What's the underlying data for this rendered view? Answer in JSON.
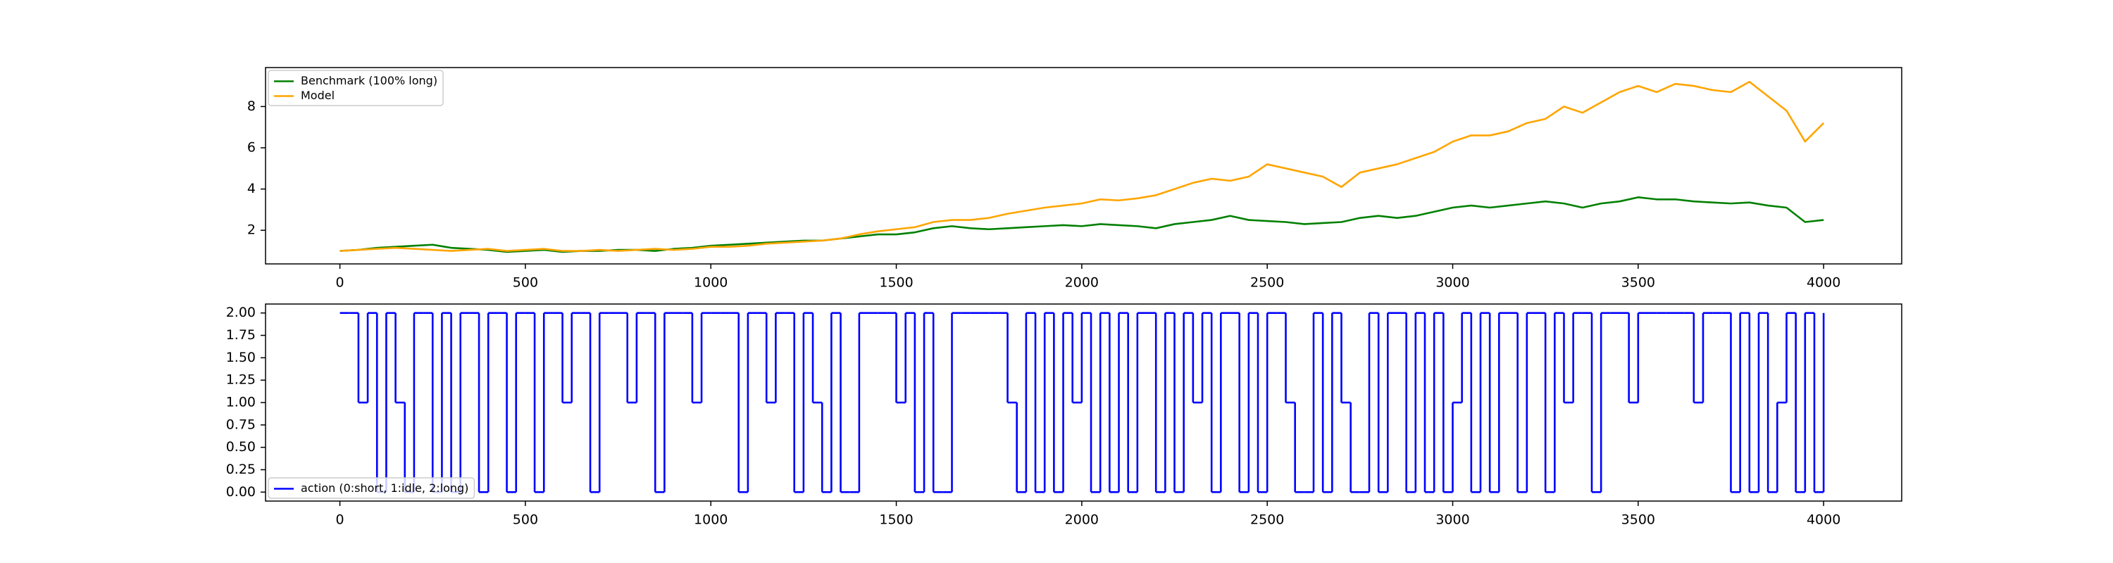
{
  "chart_data": [
    {
      "type": "line",
      "x": [
        0,
        50,
        100,
        150,
        200,
        250,
        300,
        350,
        400,
        450,
        500,
        550,
        600,
        650,
        700,
        750,
        800,
        850,
        900,
        950,
        1000,
        1050,
        1100,
        1150,
        1200,
        1250,
        1300,
        1350,
        1400,
        1450,
        1500,
        1550,
        1600,
        1650,
        1700,
        1750,
        1800,
        1850,
        1900,
        1950,
        2000,
        2050,
        2100,
        2150,
        2200,
        2250,
        2300,
        2350,
        2400,
        2450,
        2500,
        2550,
        2600,
        2650,
        2700,
        2750,
        2800,
        2850,
        2900,
        2950,
        3000,
        3050,
        3100,
        3150,
        3200,
        3250,
        3300,
        3350,
        3400,
        3450,
        3500,
        3550,
        3600,
        3650,
        3700,
        3750,
        3800,
        3850,
        3900,
        3950,
        4000
      ],
      "series": [
        {
          "name": "Benchmark (100% long)",
          "color": "green",
          "values": [
            1.0,
            1.05,
            1.15,
            1.2,
            1.25,
            1.3,
            1.15,
            1.1,
            1.05,
            0.95,
            1.0,
            1.05,
            0.95,
            1.0,
            1.0,
            1.05,
            1.05,
            1.0,
            1.1,
            1.15,
            1.25,
            1.3,
            1.35,
            1.4,
            1.45,
            1.5,
            1.5,
            1.6,
            1.7,
            1.8,
            1.8,
            1.9,
            2.1,
            2.2,
            2.1,
            2.05,
            2.1,
            2.15,
            2.2,
            2.25,
            2.2,
            2.3,
            2.25,
            2.2,
            2.1,
            2.3,
            2.4,
            2.5,
            2.7,
            2.5,
            2.45,
            2.4,
            2.3,
            2.35,
            2.4,
            2.6,
            2.7,
            2.6,
            2.7,
            2.9,
            3.1,
            3.2,
            3.1,
            3.2,
            3.3,
            3.4,
            3.3,
            3.1,
            3.3,
            3.4,
            3.6,
            3.5,
            3.5,
            3.4,
            3.35,
            3.3,
            3.35,
            3.2,
            3.1,
            2.4,
            2.5
          ]
        },
        {
          "name": "Model",
          "color": "orange",
          "values": [
            1.0,
            1.05,
            1.1,
            1.15,
            1.1,
            1.05,
            1.0,
            1.05,
            1.1,
            1.0,
            1.05,
            1.1,
            1.0,
            1.0,
            1.05,
            1.0,
            1.05,
            1.1,
            1.05,
            1.1,
            1.2,
            1.2,
            1.25,
            1.35,
            1.4,
            1.45,
            1.5,
            1.6,
            1.8,
            1.95,
            2.05,
            2.15,
            2.4,
            2.5,
            2.5,
            2.6,
            2.8,
            2.95,
            3.1,
            3.2,
            3.3,
            3.5,
            3.45,
            3.55,
            3.7,
            4.0,
            4.3,
            4.5,
            4.4,
            4.6,
            5.2,
            5.0,
            4.8,
            4.6,
            4.1,
            4.8,
            5.0,
            5.2,
            5.5,
            5.8,
            6.3,
            6.6,
            6.6,
            6.8,
            7.2,
            7.4,
            8.0,
            7.7,
            8.2,
            8.7,
            9.0,
            8.7,
            9.1,
            9.0,
            8.8,
            8.7,
            9.2,
            8.5,
            7.8,
            6.3,
            7.2
          ]
        }
      ],
      "xlim": [
        -200.5,
        4210.5
      ],
      "xticks": [
        0,
        500,
        1000,
        1500,
        2000,
        2500,
        3000,
        3500,
        4000
      ],
      "ylim": [
        0.37,
        9.89
      ],
      "yticks": [
        2,
        4,
        6,
        8
      ],
      "legend": "upper left"
    },
    {
      "type": "line",
      "step": "post",
      "x": [
        0,
        25,
        50,
        75,
        100,
        125,
        150,
        175,
        200,
        225,
        250,
        275,
        300,
        325,
        350,
        375,
        400,
        425,
        450,
        475,
        500,
        525,
        550,
        575,
        600,
        625,
        650,
        675,
        700,
        725,
        750,
        775,
        800,
        825,
        850,
        875,
        900,
        925,
        950,
        975,
        1000,
        1025,
        1050,
        1075,
        1100,
        1125,
        1150,
        1175,
        1200,
        1225,
        1250,
        1275,
        1300,
        1325,
        1350,
        1375,
        1400,
        1425,
        1450,
        1475,
        1500,
        1525,
        1550,
        1575,
        1600,
        1625,
        1650,
        1675,
        1700,
        1725,
        1750,
        1775,
        1800,
        1825,
        1850,
        1875,
        1900,
        1925,
        1950,
        1975,
        2000,
        2025,
        2050,
        2075,
        2100,
        2125,
        2150,
        2175,
        2200,
        2225,
        2250,
        2275,
        2300,
        2325,
        2350,
        2375,
        2400,
        2425,
        2450,
        2475,
        2500,
        2525,
        2550,
        2575,
        2600,
        2625,
        2650,
        2675,
        2700,
        2725,
        2750,
        2775,
        2800,
        2825,
        2850,
        2875,
        2900,
        2925,
        2950,
        2975,
        3000,
        3025,
        3050,
        3075,
        3100,
        3125,
        3150,
        3175,
        3200,
        3225,
        3250,
        3275,
        3300,
        3325,
        3350,
        3375,
        3400,
        3425,
        3450,
        3475,
        3500,
        3525,
        3550,
        3575,
        3600,
        3625,
        3650,
        3675,
        3700,
        3725,
        3750,
        3775,
        3800,
        3825,
        3850,
        3875,
        3900,
        3925,
        3950,
        3975,
        4000
      ],
      "series": [
        {
          "name": "action (0:short, 1:idle, 2:long)",
          "color": "blue",
          "values": [
            2,
            2,
            1,
            2,
            0,
            2,
            1,
            0,
            2,
            2,
            0,
            2,
            0,
            2,
            2,
            0,
            2,
            2,
            0,
            2,
            2,
            0,
            2,
            2,
            1,
            2,
            2,
            0,
            2,
            2,
            2,
            1,
            2,
            2,
            0,
            2,
            2,
            2,
            1,
            2,
            2,
            2,
            2,
            0,
            2,
            2,
            1,
            2,
            2,
            0,
            2,
            1,
            0,
            2,
            0,
            0,
            2,
            2,
            2,
            2,
            1,
            2,
            0,
            2,
            0,
            0,
            2,
            2,
            2,
            2,
            2,
            2,
            1,
            0,
            2,
            0,
            2,
            0,
            2,
            1,
            2,
            0,
            2,
            0,
            2,
            0,
            2,
            2,
            0,
            2,
            0,
            2,
            1,
            2,
            0,
            2,
            2,
            0,
            2,
            0,
            2,
            2,
            1,
            0,
            0,
            2,
            0,
            2,
            1,
            0,
            0,
            2,
            0,
            2,
            2,
            0,
            2,
            0,
            2,
            0,
            1,
            2,
            0,
            2,
            0,
            2,
            2,
            0,
            2,
            2,
            0,
            2,
            1,
            2,
            2,
            0,
            2,
            2,
            2,
            1,
            2,
            2,
            2,
            2,
            2,
            2,
            1,
            2,
            2,
            2,
            0,
            2,
            0,
            2,
            0,
            1,
            2,
            0,
            2,
            0,
            2
          ]
        }
      ],
      "xlim": [
        -200.5,
        4210.5
      ],
      "xticks": [
        0,
        500,
        1000,
        1500,
        2000,
        2500,
        3000,
        3500,
        4000
      ],
      "ylim": [
        -0.1,
        2.1
      ],
      "yticks": [
        {
          "value": 0,
          "label": "0.00"
        },
        {
          "value": 0.25,
          "label": "0.25"
        },
        {
          "value": 0.5,
          "label": "0.50"
        },
        {
          "value": 0.75,
          "label": "0.75"
        },
        {
          "value": 1,
          "label": "1.00"
        },
        {
          "value": 1.25,
          "label": "1.25"
        },
        {
          "value": 1.5,
          "label": "1.50"
        },
        {
          "value": 1.75,
          "label": "1.75"
        },
        {
          "value": 2,
          "label": "2.00"
        }
      ],
      "legend": "lower left"
    }
  ]
}
